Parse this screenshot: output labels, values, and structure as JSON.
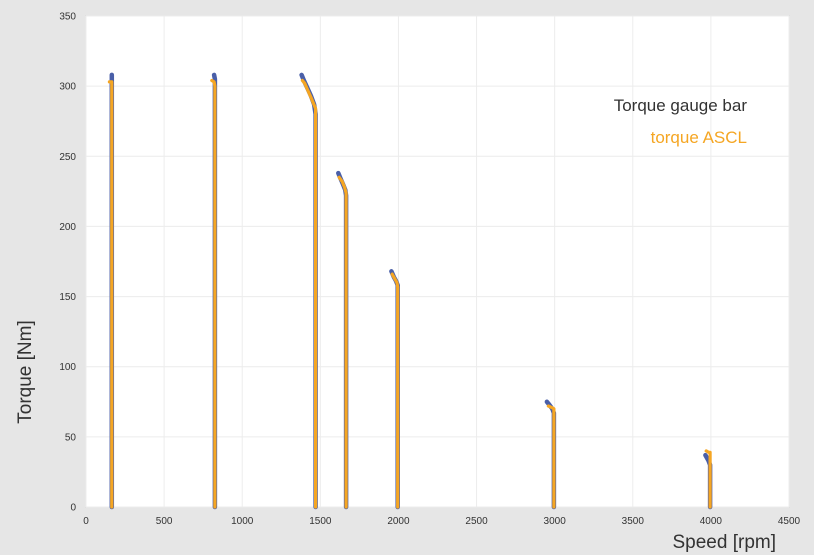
{
  "chart_data": {
    "type": "line",
    "title": "",
    "xlabel": "Speed [rpm]",
    "ylabel": "Torque [Nm]",
    "xlim": [
      0,
      4500
    ],
    "ylim": [
      0,
      350
    ],
    "x_ticks": [
      0,
      500,
      1000,
      1500,
      2000,
      2500,
      3000,
      3500,
      4000,
      4500
    ],
    "y_ticks": [
      0,
      50,
      100,
      150,
      200,
      250,
      300,
      350
    ],
    "grid": true,
    "legend_position": "top-right",
    "series": [
      {
        "name": "Torque gauge bar",
        "color": "#4a5fa8",
        "segments": [
          [
            [
              165,
              308
            ],
            [
              165,
              0
            ]
          ],
          [
            [
              820,
              308
            ],
            [
              825,
              305
            ],
            [
              825,
              0
            ]
          ],
          [
            [
              1380,
              308
            ],
            [
              1395,
              304
            ],
            [
              1420,
              298
            ],
            [
              1440,
              293
            ],
            [
              1460,
              287
            ],
            [
              1470,
              280
            ],
            [
              1470,
              0
            ]
          ],
          [
            [
              1615,
              238
            ],
            [
              1630,
              234
            ],
            [
              1645,
              230
            ],
            [
              1660,
              226
            ],
            [
              1665,
              222
            ],
            [
              1665,
              0
            ]
          ],
          [
            [
              1955,
              168
            ],
            [
              1970,
              164
            ],
            [
              1985,
              161
            ],
            [
              1995,
              158
            ],
            [
              1995,
              0
            ]
          ],
          [
            [
              2950,
              75
            ],
            [
              2965,
              73
            ],
            [
              2985,
              70
            ],
            [
              2995,
              67
            ],
            [
              2995,
              0
            ]
          ],
          [
            [
              3965,
              37
            ],
            [
              3985,
              33
            ],
            [
              3995,
              30
            ],
            [
              3995,
              0
            ]
          ]
        ]
      },
      {
        "name": "torque ASCL",
        "color": "#f5a623",
        "segments": [
          [
            [
              150,
              303
            ],
            [
              165,
              303
            ],
            [
              165,
              0
            ]
          ],
          [
            [
              805,
              304
            ],
            [
              820,
              303
            ],
            [
              825,
              300
            ],
            [
              825,
              0
            ]
          ],
          [
            [
              1385,
              304
            ],
            [
              1400,
              302
            ],
            [
              1420,
              297
            ],
            [
              1440,
              292
            ],
            [
              1455,
              288
            ],
            [
              1470,
              284
            ],
            [
              1470,
              0
            ]
          ],
          [
            [
              1620,
              235
            ],
            [
              1640,
              232
            ],
            [
              1655,
              228
            ],
            [
              1665,
              224
            ],
            [
              1665,
              0
            ]
          ],
          [
            [
              1960,
              166
            ],
            [
              1975,
              163
            ],
            [
              1990,
              160
            ],
            [
              1995,
              157
            ],
            [
              1995,
              0
            ]
          ],
          [
            [
              2960,
              72
            ],
            [
              2980,
              71
            ],
            [
              2995,
              70
            ],
            [
              2995,
              0
            ]
          ],
          [
            [
              3970,
              40
            ],
            [
              3985,
              39
            ],
            [
              3995,
              39
            ],
            [
              3995,
              0
            ]
          ]
        ]
      }
    ]
  }
}
